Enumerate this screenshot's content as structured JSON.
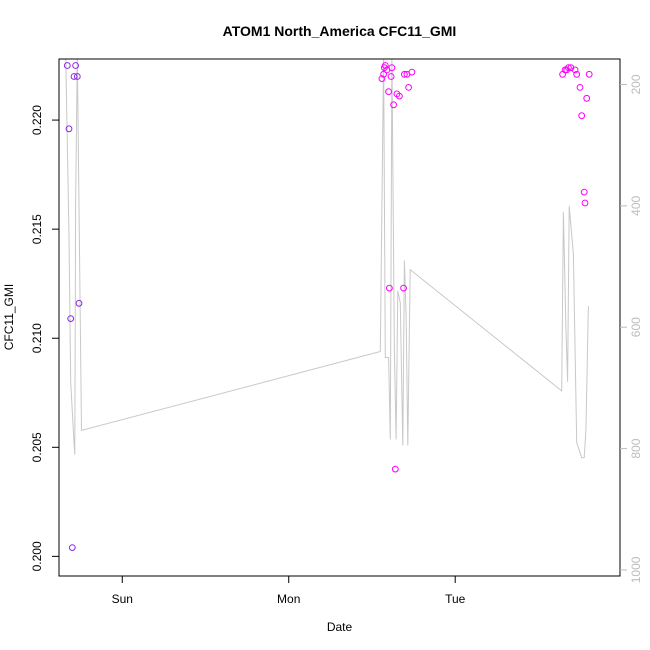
{
  "chart_data": {
    "type": "scatter",
    "title": "ATOM1 North_America CFC11_GMI",
    "xlabel": "Date",
    "ylabel": "CFC11_GMI",
    "x_tick_labels": [
      "Sun",
      "Mon",
      "Tue"
    ],
    "x_tick_values": [
      1,
      2,
      3
    ],
    "xlim": [
      0.62,
      3.99
    ],
    "ylim": [
      0.1991,
      0.2228
    ],
    "y_ticks": [
      0.2,
      0.205,
      0.21,
      0.215,
      0.22
    ],
    "y_tick_labels": [
      "0.200",
      "0.205",
      "0.210",
      "0.215",
      "0.220"
    ],
    "y2_ticks": [
      200,
      400,
      600,
      800,
      1000
    ],
    "y2_tick_labels": [
      "200",
      "400",
      "600",
      "800",
      "1000"
    ],
    "y2lim": [
      1010,
      158
    ],
    "colors": {
      "early": "#8a2be2",
      "late": "#ff00ff",
      "pressure_line": "#c8c8c8",
      "right_axis": "#bdbdbd"
    },
    "points": [
      {
        "x": 0.67,
        "y": 0.2225,
        "c": "early"
      },
      {
        "x": 0.68,
        "y": 0.2196,
        "c": "early"
      },
      {
        "x": 0.69,
        "y": 0.2109,
        "c": "early"
      },
      {
        "x": 0.7,
        "y": 0.2004,
        "c": "early"
      },
      {
        "x": 0.71,
        "y": 0.222,
        "c": "early"
      },
      {
        "x": 0.72,
        "y": 0.2225,
        "c": "early"
      },
      {
        "x": 0.73,
        "y": 0.222,
        "c": "early"
      },
      {
        "x": 0.74,
        "y": 0.2116,
        "c": "early"
      },
      {
        "x": 2.56,
        "y": 0.2219,
        "c": "late"
      },
      {
        "x": 2.57,
        "y": 0.2221,
        "c": "late"
      },
      {
        "x": 2.575,
        "y": 0.2224,
        "c": "late"
      },
      {
        "x": 2.58,
        "y": 0.2225,
        "c": "late"
      },
      {
        "x": 2.59,
        "y": 0.2223,
        "c": "late"
      },
      {
        "x": 2.6,
        "y": 0.2213,
        "c": "late"
      },
      {
        "x": 2.605,
        "y": 0.2123,
        "c": "late"
      },
      {
        "x": 2.615,
        "y": 0.222,
        "c": "late"
      },
      {
        "x": 2.62,
        "y": 0.2224,
        "c": "late"
      },
      {
        "x": 2.63,
        "y": 0.2207,
        "c": "late"
      },
      {
        "x": 2.64,
        "y": 0.204,
        "c": "late"
      },
      {
        "x": 2.65,
        "y": 0.2212,
        "c": "late"
      },
      {
        "x": 2.665,
        "y": 0.2211,
        "c": "late"
      },
      {
        "x": 2.69,
        "y": 0.2123,
        "c": "late"
      },
      {
        "x": 2.695,
        "y": 0.2221,
        "c": "late"
      },
      {
        "x": 2.71,
        "y": 0.2221,
        "c": "late"
      },
      {
        "x": 2.72,
        "y": 0.2215,
        "c": "late"
      },
      {
        "x": 2.74,
        "y": 0.2222,
        "c": "late"
      },
      {
        "x": 3.645,
        "y": 0.2221,
        "c": "late"
      },
      {
        "x": 3.66,
        "y": 0.2223,
        "c": "late"
      },
      {
        "x": 3.67,
        "y": 0.2223,
        "c": "late"
      },
      {
        "x": 3.68,
        "y": 0.2224,
        "c": "late"
      },
      {
        "x": 3.695,
        "y": 0.2224,
        "c": "late"
      },
      {
        "x": 3.72,
        "y": 0.2223,
        "c": "late"
      },
      {
        "x": 3.73,
        "y": 0.2221,
        "c": "late"
      },
      {
        "x": 3.75,
        "y": 0.2215,
        "c": "late"
      },
      {
        "x": 3.76,
        "y": 0.2202,
        "c": "late"
      },
      {
        "x": 3.775,
        "y": 0.2167,
        "c": "late"
      },
      {
        "x": 3.78,
        "y": 0.2162,
        "c": "late"
      },
      {
        "x": 3.79,
        "y": 0.221,
        "c": "late"
      },
      {
        "x": 3.805,
        "y": 0.2221,
        "c": "late"
      }
    ],
    "pressure_line": [
      {
        "x": 0.66,
        "y": 150
      },
      {
        "x": 0.68,
        "y": 450
      },
      {
        "x": 0.69,
        "y": 690
      },
      {
        "x": 0.71,
        "y": 790
      },
      {
        "x": 0.715,
        "y": 810
      },
      {
        "x": 0.72,
        "y": 400
      },
      {
        "x": 0.73,
        "y": 150
      },
      {
        "x": 0.74,
        "y": 400
      },
      {
        "x": 0.755,
        "y": 770
      },
      {
        "x": 2.55,
        "y": 640
      },
      {
        "x": 2.57,
        "y": 150
      },
      {
        "x": 2.58,
        "y": 650
      },
      {
        "x": 2.6,
        "y": 650
      },
      {
        "x": 2.61,
        "y": 785
      },
      {
        "x": 2.62,
        "y": 150
      },
      {
        "x": 2.635,
        "y": 640
      },
      {
        "x": 2.645,
        "y": 785
      },
      {
        "x": 2.655,
        "y": 540
      },
      {
        "x": 2.67,
        "y": 560
      },
      {
        "x": 2.685,
        "y": 795
      },
      {
        "x": 2.695,
        "y": 490
      },
      {
        "x": 2.705,
        "y": 580
      },
      {
        "x": 2.715,
        "y": 795
      },
      {
        "x": 2.73,
        "y": 505
      },
      {
        "x": 3.64,
        "y": 705
      },
      {
        "x": 3.65,
        "y": 410
      },
      {
        "x": 3.665,
        "y": 600
      },
      {
        "x": 3.675,
        "y": 690
      },
      {
        "x": 3.685,
        "y": 400
      },
      {
        "x": 3.71,
        "y": 480
      },
      {
        "x": 3.73,
        "y": 790
      },
      {
        "x": 3.76,
        "y": 815
      },
      {
        "x": 3.775,
        "y": 815
      },
      {
        "x": 3.785,
        "y": 770
      },
      {
        "x": 3.8,
        "y": 565
      }
    ]
  }
}
